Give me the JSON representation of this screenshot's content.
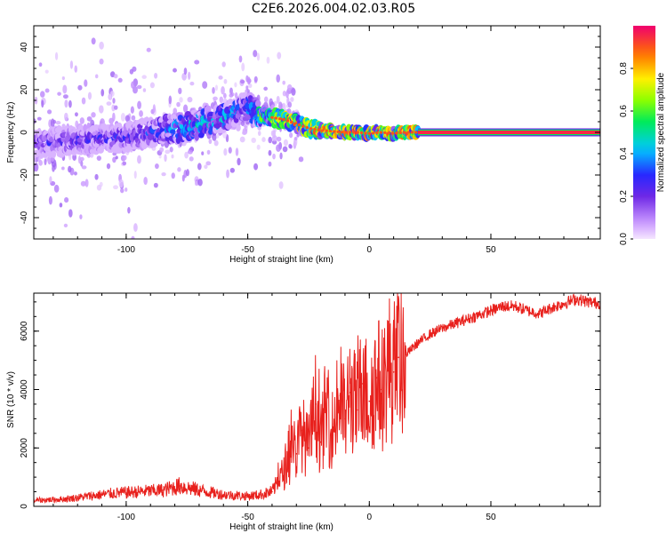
{
  "title": "C2E6.2026.004.02.03.R05",
  "chart_data": [
    {
      "type": "heatmap",
      "xlabel": "Height of straight line (km)",
      "ylabel": "Frequency (Hz)",
      "xlim": [
        -138,
        95
      ],
      "ylim": [
        -50,
        50
      ],
      "xticks": [
        -100,
        -50,
        0,
        50
      ],
      "xtick_labels": [
        "-100",
        "-50",
        "0",
        "50"
      ],
      "yticks": [
        -40,
        -20,
        0,
        20,
        40
      ],
      "ytick_labels": [
        "-40",
        "-20",
        "0",
        "20",
        "40"
      ],
      "colorbar": {
        "label": "Normalized spectral amplitude",
        "range": [
          0,
          1
        ],
        "ticks": [
          0.0,
          0.2,
          0.4,
          0.6,
          0.8
        ],
        "tick_labels": [
          "0.0",
          "0.2",
          "0.4",
          "0.6",
          "0.8"
        ]
      },
      "ridge": {
        "x": [
          -138,
          -125,
          -110,
          -100,
          -90,
          -80,
          -70,
          -60,
          -55,
          -50,
          -45,
          -40,
          -35,
          -30,
          -25,
          -20,
          -15,
          -10,
          -5,
          0,
          5,
          10,
          15,
          20,
          50,
          95
        ],
        "freq": [
          -5,
          -4,
          -3,
          -2,
          0,
          2,
          4,
          7,
          10,
          12,
          8,
          7,
          6,
          4,
          2,
          1,
          0.5,
          0,
          0,
          -0.5,
          0,
          -0.5,
          0,
          0,
          0,
          0
        ],
        "amplitude": [
          0.25,
          0.3,
          0.3,
          0.3,
          0.35,
          0.45,
          0.5,
          0.5,
          0.45,
          0.4,
          0.65,
          0.75,
          0.85,
          0.9,
          0.9,
          0.95,
          0.95,
          1.0,
          1.0,
          1.0,
          1.0,
          1.0,
          1.0,
          1.0,
          1.0,
          1.0
        ]
      }
    },
    {
      "type": "line",
      "xlabel": "Height of straight line (km)",
      "ylabel": "SNR (10 * v/v)",
      "xlim": [
        -138,
        95
      ],
      "ylim": [
        0,
        7300
      ],
      "xticks": [
        -100,
        -50,
        0,
        50
      ],
      "xtick_labels": [
        "-100",
        "-50",
        "0",
        "50"
      ],
      "yticks": [
        0,
        2000,
        4000,
        6000
      ],
      "ytick_labels": [
        "0",
        "2000",
        "4000",
        "6000"
      ],
      "color": "#e8201c",
      "series": [
        {
          "name": "SNR",
          "x": [
            -138,
            -125,
            -115,
            -105,
            -95,
            -85,
            -78,
            -70,
            -60,
            -50,
            -45,
            -40,
            -35,
            -32,
            -30,
            -28,
            -25,
            -22,
            -20,
            -18,
            -15,
            -12,
            -10,
            -8,
            -5,
            -3,
            0,
            3,
            5,
            8,
            10,
            12,
            15,
            20,
            25,
            30,
            40,
            50,
            55,
            60,
            65,
            70,
            75,
            80,
            85,
            90,
            95
          ],
          "y": [
            200,
            250,
            350,
            450,
            500,
            550,
            700,
            550,
            400,
            350,
            400,
            500,
            1200,
            2500,
            1800,
            2600,
            2000,
            3500,
            2200,
            3300,
            2600,
            3800,
            3000,
            3900,
            3300,
            4200,
            3600,
            4400,
            4000,
            4800,
            4600,
            5100,
            5200,
            5600,
            5900,
            6100,
            6400,
            6700,
            6850,
            6850,
            6700,
            6600,
            6800,
            6950,
            7100,
            7000,
            6950
          ]
        }
      ]
    }
  ]
}
